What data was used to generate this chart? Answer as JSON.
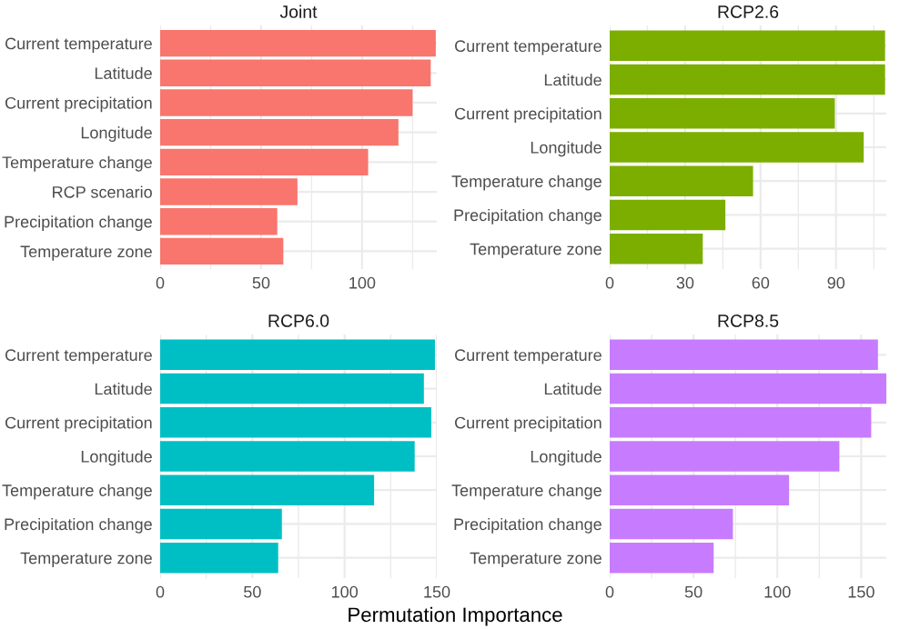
{
  "chart_data": [
    {
      "type": "bar",
      "orientation": "horizontal",
      "title": "Joint",
      "categories": [
        "Current temperature",
        "Latitude",
        "Current precipitation",
        "Longitude",
        "Temperature change",
        "RCP scenario",
        "Precipitation change",
        "Temperature zone"
      ],
      "series": [
        {
          "color": "#f8766d",
          "values": [
            136.5,
            134,
            125,
            118,
            103,
            68,
            58,
            61
          ]
        }
      ],
      "xlim": [
        0,
        137
      ],
      "xticks": [
        0,
        50,
        100
      ],
      "grid": true
    },
    {
      "type": "bar",
      "orientation": "horizontal",
      "title": "RCP2.6",
      "categories": [
        "Current temperature",
        "Latitude",
        "Current precipitation",
        "Longitude",
        "Temperature change",
        "Precipitation change",
        "Temperature zone"
      ],
      "series": [
        {
          "color": "#7cae00",
          "values": [
            109.5,
            109.5,
            89.5,
            101,
            57,
            46,
            37
          ]
        }
      ],
      "xlim": [
        0,
        110
      ],
      "xticks": [
        0,
        30,
        60,
        90
      ],
      "grid": true
    },
    {
      "type": "bar",
      "orientation": "horizontal",
      "title": "RCP6.0",
      "xlabel": "Permutation Importance",
      "categories": [
        "Current temperature",
        "Latitude",
        "Current precipitation",
        "Longitude",
        "Temperature change",
        "Precipitation change",
        "Temperature zone"
      ],
      "series": [
        {
          "color": "#00bfc4",
          "values": [
            149,
            143,
            147,
            138,
            116,
            66,
            64
          ]
        }
      ],
      "xlim": [
        0,
        150
      ],
      "xticks": [
        0,
        50,
        100,
        150
      ],
      "grid": true
    },
    {
      "type": "bar",
      "orientation": "horizontal",
      "title": "RCP8.5",
      "categories": [
        "Current temperature",
        "Latitude",
        "Current precipitation",
        "Longitude",
        "Temperature change",
        "Precipitation change",
        "Temperature zone"
      ],
      "series": [
        {
          "color": "#c77cff",
          "values": [
            160,
            165,
            156,
            137,
            107,
            73.5,
            62
          ]
        }
      ],
      "xlim": [
        0,
        165
      ],
      "xticks": [
        0,
        50,
        100,
        150
      ],
      "grid": true
    }
  ]
}
